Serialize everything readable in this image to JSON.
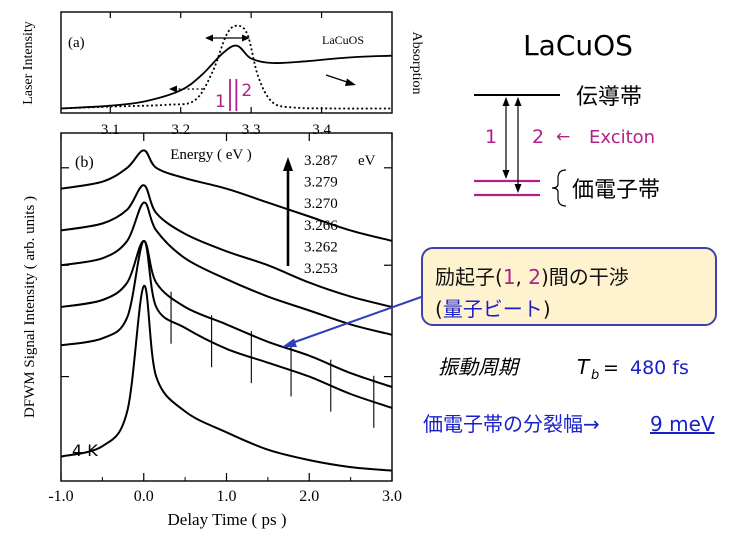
{
  "chart_data": [
    {
      "type": "line",
      "panel_label": "(a)",
      "sample": "LaCuOS",
      "xlabel": "Energy ( eV )",
      "ylabel_left": "Laser Intensity",
      "ylabel_right": "Absorption",
      "xlim": [
        3.03,
        3.5
      ],
      "x_ticks": [
        "3.1",
        "3.2",
        "3.3",
        "3.4"
      ],
      "x_tick_values": [
        3.1,
        3.2,
        3.3,
        3.4
      ],
      "peak_markers": [
        "1",
        "2"
      ],
      "peak_positions_ev": [
        3.27,
        3.279
      ],
      "series": [
        {
          "style": "solid",
          "x": [
            3.03,
            3.1,
            3.15,
            3.2,
            3.23,
            3.26,
            3.28,
            3.3,
            3.33,
            3.38,
            3.42,
            3.46,
            3.5
          ],
          "values": [
            0.05,
            0.08,
            0.13,
            0.25,
            0.42,
            0.66,
            0.74,
            0.6,
            0.55,
            0.57,
            0.6,
            0.62,
            0.63
          ]
        },
        {
          "style": "dotted",
          "x": [
            3.03,
            3.1,
            3.18,
            3.22,
            3.245,
            3.265,
            3.28,
            3.295,
            3.31,
            3.33,
            3.36,
            3.42,
            3.5
          ],
          "values": [
            0.05,
            0.07,
            0.09,
            0.14,
            0.45,
            0.86,
            0.96,
            0.86,
            0.4,
            0.12,
            0.06,
            0.05,
            0.05
          ]
        }
      ]
    },
    {
      "type": "line",
      "panel_label": "(b)",
      "xlabel": "Delay Time ( ps )",
      "ylabel": "DFWM Signal Intensity ( arb. units )",
      "xlim": [
        -1.0,
        3.0
      ],
      "x_ticks": [
        "-1.0",
        "0.0",
        "1.0",
        "2.0",
        "3.0"
      ],
      "x_tick_values": [
        -1.0,
        0.0,
        1.0,
        2.0,
        3.0
      ],
      "temperature": "4 K",
      "energy_legend": [
        "3.287",
        "3.279",
        "3.270",
        "3.266",
        "3.262",
        "3.253"
      ],
      "energy_unit": "eV",
      "beat_marker_times_ps": [
        0.33,
        0.82,
        1.3,
        1.78,
        2.26,
        2.78
      ],
      "series": [
        {
          "name": "3.287 eV",
          "x": [
            -1.0,
            -0.5,
            -0.2,
            0.0,
            0.15,
            0.5,
            1.0,
            1.5,
            2.0,
            2.5,
            3.0
          ],
          "values": [
            0.84,
            0.86,
            0.9,
            0.95,
            0.9,
            0.87,
            0.84,
            0.8,
            0.76,
            0.72,
            0.69
          ]
        },
        {
          "name": "3.279 eV",
          "x": [
            -1.0,
            -0.5,
            -0.2,
            0.0,
            0.15,
            0.5,
            1.0,
            1.5,
            2.0,
            2.5,
            3.0
          ],
          "values": [
            0.72,
            0.74,
            0.78,
            0.85,
            0.77,
            0.71,
            0.66,
            0.62,
            0.57,
            0.53,
            0.5
          ]
        },
        {
          "name": "3.270 eV",
          "x": [
            -1.0,
            -0.5,
            -0.2,
            0.0,
            0.15,
            0.5,
            1.0,
            1.5,
            2.0,
            2.5,
            3.0
          ],
          "values": [
            0.62,
            0.64,
            0.69,
            0.8,
            0.72,
            0.64,
            0.58,
            0.53,
            0.49,
            0.45,
            0.42
          ]
        },
        {
          "name": "3.266 eV",
          "x": [
            -1.0,
            -0.5,
            -0.2,
            0.0,
            0.15,
            0.5,
            1.0,
            1.5,
            2.0,
            2.5,
            3.0
          ],
          "values": [
            0.5,
            0.52,
            0.57,
            0.69,
            0.57,
            0.5,
            0.45,
            0.4,
            0.36,
            0.31,
            0.27
          ]
        },
        {
          "name": "3.262 eV",
          "x": [
            -1.0,
            -0.5,
            -0.2,
            0.0,
            0.15,
            0.5,
            1.0,
            1.5,
            2.0,
            2.5,
            3.0
          ],
          "values": [
            0.39,
            0.41,
            0.47,
            0.69,
            0.5,
            0.44,
            0.38,
            0.34,
            0.3,
            0.25,
            0.21
          ]
        },
        {
          "name": "3.253 eV",
          "x": [
            -1.0,
            -0.5,
            -0.2,
            0.0,
            0.15,
            0.5,
            1.0,
            1.5,
            2.0,
            2.5,
            3.0
          ],
          "values": [
            0.07,
            0.1,
            0.2,
            0.56,
            0.3,
            0.2,
            0.14,
            0.09,
            0.06,
            0.04,
            0.03
          ]
        }
      ]
    }
  ],
  "diagram": {
    "title": "LaCuOS",
    "conduction_band": "伝導帯",
    "valence_band": "価電子帯",
    "transition_1": "1",
    "transition_2": "2",
    "arrow": "←",
    "exciton": "Exciton"
  },
  "callout": {
    "l1_prefix": "励起子(",
    "l1_m1": "1",
    "l1_comma": ", ",
    "l1_m2": "2",
    "l1_suffix": ")間の干渉",
    "l2_open": "(",
    "l2_blue": "量子ビート",
    "l2_close": ")"
  },
  "oscillation": {
    "label": "振動周期",
    "symbol": "T",
    "subscript": "b",
    "equals": "=",
    "value": "480 fs"
  },
  "splitting": {
    "label": "価電子帯の分裂幅→",
    "value": "9 meV"
  },
  "colors": {
    "magenta": "#b0208a",
    "blue": "#1a20c8",
    "callout_fill": "#fff3cf",
    "callout_border": "#3f3fb0"
  }
}
